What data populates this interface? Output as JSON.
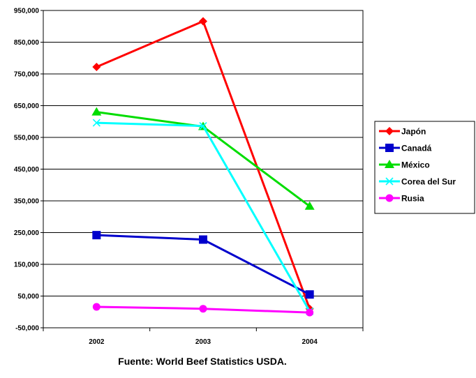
{
  "chart_data": {
    "type": "line",
    "categories": [
      "2002",
      "2003",
      "2004"
    ],
    "ylim": [
      -50000,
      950000
    ],
    "yticks": [
      "950,000",
      "850,000",
      "750,000",
      "650,000",
      "550,000",
      "450,000",
      "350,000",
      "250,000",
      "150,000",
      "50,000",
      "-50,000"
    ],
    "ytick_values": [
      950000,
      850000,
      750000,
      650000,
      550000,
      450000,
      350000,
      250000,
      150000,
      50000,
      -50000
    ],
    "grid": true,
    "legend_position": "right",
    "series": [
      {
        "name": "Japón",
        "values": [
          772000,
          916000,
          10000
        ],
        "color": "#ff0000",
        "marker": "diamond"
      },
      {
        "name": "Canadá",
        "values": [
          242000,
          228000,
          55000
        ],
        "color": "#0000cc",
        "marker": "square"
      },
      {
        "name": "México",
        "values": [
          630000,
          584000,
          333000
        ],
        "color": "#00dd00",
        "marker": "triangle"
      },
      {
        "name": "Corea del Sur",
        "values": [
          596000,
          586000,
          2000
        ],
        "color": "#00ffff",
        "marker": "x"
      },
      {
        "name": "Rusia",
        "values": [
          16000,
          10000,
          -2000
        ],
        "color": "#ff00ff",
        "marker": "circle"
      }
    ]
  },
  "source": "Fuente:  World Beef Statistics USDA."
}
